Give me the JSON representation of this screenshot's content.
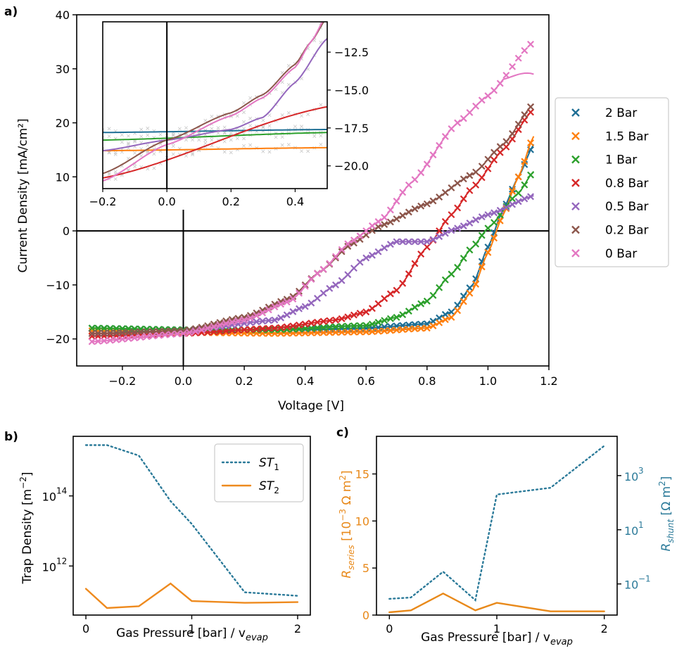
{
  "panels": {
    "a": "a)",
    "b": "b)",
    "c": "c)"
  },
  "colors": {
    "2 Bar": "#1f6f95",
    "1.5 Bar": "#ff7f0e",
    "1 Bar": "#2ca02c",
    "0.8 Bar": "#d62728",
    "0.5 Bar": "#9467bd",
    "0.2 Bar": "#8c564b",
    "0 Bar": "#e377c2",
    "st1": "#2b7a99",
    "st2": "#ee8a1e",
    "rseries": "#e8891a",
    "rshunt": "#2b7a99"
  },
  "chart_data": [
    {
      "type": "scatter",
      "panel": "a)",
      "xlabel": "Voltage [V]",
      "ylabel": "Current Density [mA/cm²]",
      "xlim": [
        -0.35,
        1.2
      ],
      "ylim": [
        -25,
        40
      ],
      "xticks": [
        "−0.2",
        "0.0",
        "0.2",
        "0.4",
        "0.6",
        "0.8",
        "1.0",
        "1.2"
      ],
      "xtick_values": [
        -0.2,
        0,
        0.2,
        0.4,
        0.6,
        0.8,
        1.0,
        1.2
      ],
      "yticks": [
        "−20",
        "−10",
        "0",
        "10",
        "20",
        "30",
        "40"
      ],
      "ytick_values": [
        -20,
        -10,
        0,
        10,
        20,
        30,
        40
      ],
      "legend_placement": "right outside",
      "markers": "x markers with fitted solid lines",
      "series": [
        {
          "name": "2 Bar",
          "v": [
            -0.3,
            0.0,
            0.3,
            0.6,
            0.8,
            0.88,
            0.95,
            1.0,
            1.05,
            1.1,
            1.15
          ],
          "j": [
            -18.0,
            -18.3,
            -18.3,
            -18.0,
            -17.2,
            -15.0,
            -10.0,
            -3.0,
            4.0,
            10.0,
            16.0
          ]
        },
        {
          "name": "1.5 Bar",
          "v": [
            -0.3,
            0.0,
            0.3,
            0.6,
            0.8,
            0.88,
            0.95,
            1.0,
            1.05,
            1.1,
            1.15
          ],
          "j": [
            -18.5,
            -18.8,
            -19.0,
            -18.7,
            -18.0,
            -16.0,
            -11.0,
            -4.0,
            3.0,
            10.0,
            17.5
          ]
        },
        {
          "name": "1 Bar",
          "v": [
            -0.3,
            0.0,
            0.3,
            0.6,
            0.7,
            0.8,
            0.88,
            0.95,
            1.0,
            1.1,
            1.15
          ],
          "j": [
            -18.0,
            -18.3,
            -18.3,
            -17.5,
            -16.0,
            -13.0,
            -8.0,
            -3.0,
            0.5,
            7.0,
            11.0
          ]
        },
        {
          "name": "0.8 Bar",
          "v": [
            -0.3,
            0.0,
            0.3,
            0.5,
            0.6,
            0.7,
            0.8,
            0.88,
            0.95,
            1.05,
            1.15
          ],
          "j": [
            -19.5,
            -19.0,
            -18.0,
            -16.5,
            -15.0,
            -11.0,
            -3.0,
            3.0,
            8.0,
            15.0,
            22.5
          ]
        },
        {
          "name": "0.5 Bar",
          "v": [
            -0.3,
            0.0,
            0.3,
            0.4,
            0.5,
            0.6,
            0.7,
            0.8,
            0.9,
            1.0,
            1.15
          ],
          "j": [
            -19.0,
            -18.5,
            -16.5,
            -14.0,
            -10.0,
            -5.0,
            -2.0,
            -2.0,
            0.5,
            3.0,
            6.5
          ]
        },
        {
          "name": "0.2 Bar",
          "v": [
            -0.3,
            0.0,
            0.2,
            0.35,
            0.45,
            0.55,
            0.65,
            0.8,
            0.95,
            1.05,
            1.15
          ],
          "j": [
            -19.0,
            -18.5,
            -16.0,
            -12.5,
            -7.5,
            -2.5,
            1.0,
            5.0,
            10.5,
            16.0,
            23.5
          ]
        },
        {
          "name": "0 Bar",
          "v": [
            -0.3,
            0.0,
            0.2,
            0.35,
            0.45,
            0.55,
            0.65,
            0.75,
            0.9,
            1.0,
            1.15
          ],
          "j": [
            -20.5,
            -19.0,
            -16.5,
            -13.0,
            -7.5,
            -2.0,
            2.0,
            9.0,
            20.0,
            25.0,
            35.0
          ]
        }
      ],
      "inset": {
        "xlim": [
          -0.2,
          0.5
        ],
        "ylim": [
          -21.5,
          -10.5
        ],
        "xticks": [
          "−0.2",
          "0.0",
          "0.2",
          "0.4"
        ],
        "xtick_values": [
          -0.2,
          0,
          0.2,
          0.4
        ],
        "yticks": [
          "−12.5",
          "−15.0",
          "−17.5",
          "−20.0"
        ],
        "ytick_values": [
          -12.5,
          -15.0,
          -17.5,
          -20.0
        ],
        "yaxis_side": "right"
      }
    },
    {
      "type": "line",
      "panel": "b)",
      "xlabel": "Gas Pressure [bar] / v",
      "xlabel_sub": "evap",
      "ylabel": "Trap Density [m",
      "ylabel_sup": "−2",
      "ylabel_end": "]",
      "yscale": "log",
      "ylim_log10": [
        10.6,
        15.7
      ],
      "xlim": [
        -0.12,
        2.12
      ],
      "xticks": [
        "0",
        "1",
        "2"
      ],
      "xtick_values": [
        0,
        1,
        2
      ],
      "yticks": [
        "10",
        "10"
      ],
      "ytick_exponents": [
        "14",
        "12"
      ],
      "ytick_log10": [
        14,
        12
      ],
      "legend_placement": "top-right",
      "series": [
        {
          "name": "ST",
          "sub": "1",
          "style": "dotted",
          "x": [
            0,
            0.2,
            0.5,
            0.8,
            1.0,
            1.5,
            2.0
          ],
          "y_log10": [
            15.45,
            15.45,
            15.15,
            13.85,
            13.2,
            11.25,
            11.15
          ]
        },
        {
          "name": "ST",
          "sub": "2",
          "style": "solid",
          "x": [
            0,
            0.2,
            0.5,
            0.8,
            1.0,
            1.5,
            2.0
          ],
          "y_log10": [
            11.35,
            10.8,
            10.85,
            11.5,
            11.0,
            10.95,
            10.97
          ]
        }
      ]
    },
    {
      "type": "line",
      "panel": "c)",
      "xlabel": "Gas Pressure [bar] / v",
      "xlabel_sub": "evap",
      "xlim": [
        -0.12,
        2.12
      ],
      "xticks": [
        "0",
        "1",
        "2"
      ],
      "xtick_values": [
        0,
        1,
        2
      ],
      "left_axis": {
        "label": "R",
        "label_sub": "series",
        "label_unit": " [10",
        "label_sup": "−3",
        "label_end": " Ω m",
        "label_sup2": "2",
        "label_close": "]",
        "ylim": [
          0,
          19
        ],
        "yticks": [
          "0",
          "5",
          "10",
          "15"
        ],
        "ytick_values": [
          0,
          5,
          10,
          15
        ]
      },
      "right_axis": {
        "label": "R",
        "label_sub": "shunt",
        "label_unit": " [Ω m",
        "label_sup": "2",
        "label_close": "]",
        "scale": "log",
        "ylim_log10": [
          -2.15,
          4.45
        ],
        "yticks": [
          "10",
          "10",
          "10"
        ],
        "ytick_exponents": [
          "3",
          "1",
          "−1"
        ],
        "ytick_log10": [
          3,
          1,
          -1
        ]
      },
      "series": [
        {
          "name": "R_series",
          "style": "solid",
          "axis": "left",
          "x": [
            0,
            0.2,
            0.5,
            0.8,
            1.0,
            1.5,
            2.0
          ],
          "y": [
            0.3,
            0.5,
            2.3,
            0.5,
            1.3,
            0.4,
            0.4
          ]
        },
        {
          "name": "R_shunt",
          "style": "dotted",
          "axis": "right",
          "x": [
            0,
            0.2,
            0.5,
            0.8,
            1.0,
            1.5,
            2.0
          ],
          "y_log10": [
            -1.55,
            -1.5,
            -0.55,
            -1.6,
            2.3,
            2.55,
            4.1
          ]
        }
      ]
    }
  ]
}
